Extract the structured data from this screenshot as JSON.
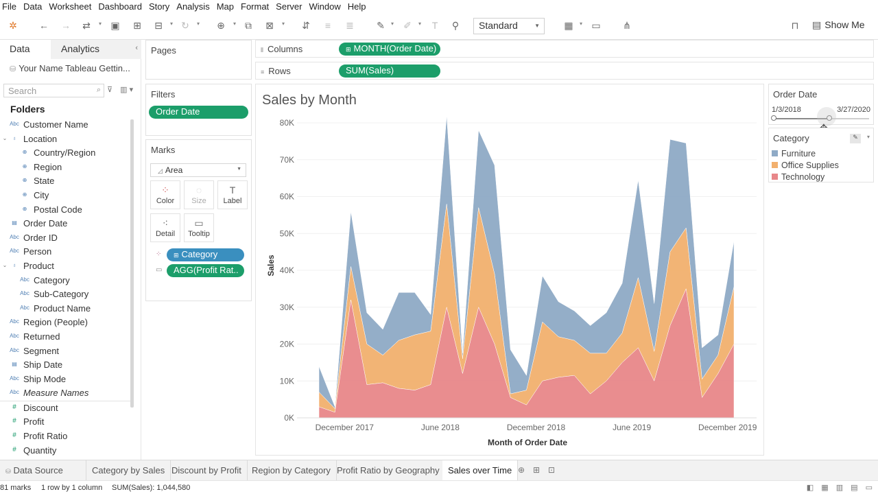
{
  "menu": [
    "File",
    "Data",
    "Worksheet",
    "Dashboard",
    "Story",
    "Analysis",
    "Map",
    "Format",
    "Server",
    "Window",
    "Help"
  ],
  "toolbar": {
    "fit_select": "Standard",
    "show_me": "Show Me"
  },
  "data_pane": {
    "tab_data": "Data",
    "tab_analytics": "Analytics",
    "datasource": "Your Name Tableau Gettin...",
    "search_placeholder": "Search",
    "folders_label": "Folders",
    "fields": [
      {
        "label": "Customer Name",
        "type": "Abc",
        "indent": 0
      },
      {
        "label": "Location",
        "type": "hier",
        "indent": 0
      },
      {
        "label": "Country/Region",
        "type": "geo",
        "indent": 1
      },
      {
        "label": "Region",
        "type": "geo",
        "indent": 1
      },
      {
        "label": "State",
        "type": "geo",
        "indent": 1
      },
      {
        "label": "City",
        "type": "geo",
        "indent": 1
      },
      {
        "label": "Postal Code",
        "type": "geo",
        "indent": 1
      },
      {
        "label": "Order Date",
        "type": "date",
        "indent": 0
      },
      {
        "label": "Order ID",
        "type": "Abc",
        "indent": 0
      },
      {
        "label": "Person",
        "type": "Abc",
        "indent": 0
      },
      {
        "label": "Product",
        "type": "hier",
        "indent": 0
      },
      {
        "label": "Category",
        "type": "Abc",
        "indent": 1
      },
      {
        "label": "Sub-Category",
        "type": "Abc",
        "indent": 1
      },
      {
        "label": "Product Name",
        "type": "Abc",
        "indent": 1
      },
      {
        "label": "Region (People)",
        "type": "Abc",
        "indent": 0
      },
      {
        "label": "Returned",
        "type": "Abc",
        "indent": 0
      },
      {
        "label": "Segment",
        "type": "Abc",
        "indent": 0
      },
      {
        "label": "Ship Date",
        "type": "date",
        "indent": 0
      },
      {
        "label": "Ship Mode",
        "type": "Abc",
        "indent": 0
      },
      {
        "label": "Measure Names",
        "type": "Abc",
        "indent": 0,
        "italic": true
      }
    ],
    "measures": [
      {
        "label": "Discount"
      },
      {
        "label": "Profit"
      },
      {
        "label": "Profit Ratio"
      },
      {
        "label": "Quantity"
      }
    ]
  },
  "pages": {
    "title": "Pages"
  },
  "filters": {
    "title": "Filters",
    "pill": "Order Date"
  },
  "marks": {
    "title": "Marks",
    "type": "Area",
    "buttons": {
      "color": "Color",
      "size": "Size",
      "label": "Label",
      "detail": "Detail",
      "tooltip": "Tooltip"
    },
    "pill_category": "Category",
    "pill_tooltip": "AGG(Profit Rat.."
  },
  "shelves": {
    "columns_label": "Columns",
    "columns_pill": "MONTH(Order Date)",
    "rows_label": "Rows",
    "rows_pill": "SUM(Sales)"
  },
  "chart_title": "Sales by Month",
  "chart_data": {
    "type": "area",
    "stacked": true,
    "title": "Sales by Month",
    "xlabel": "Month of Order Date",
    "ylabel": "Sales",
    "ylim": [
      0,
      80000
    ],
    "y_ticks": [
      "0K",
      "10K",
      "20K",
      "30K",
      "40K",
      "50K",
      "60K",
      "70K",
      "80K"
    ],
    "x_ticks": [
      {
        "label": "December 2017",
        "x": "2017-12"
      },
      {
        "label": "June 2018",
        "x": "2018-06"
      },
      {
        "label": "December 2018",
        "x": "2018-12"
      },
      {
        "label": "June 2019",
        "x": "2019-06"
      },
      {
        "label": "December 2019",
        "x": "2019-12"
      }
    ],
    "x": [
      "2017-11",
      "2017-12",
      "2018-01",
      "2018-02",
      "2018-03",
      "2018-04",
      "2018-05",
      "2018-06",
      "2018-07",
      "2018-08",
      "2018-09",
      "2018-10",
      "2018-11",
      "2018-12",
      "2019-01",
      "2019-02",
      "2019-03",
      "2019-04",
      "2019-05",
      "2019-06",
      "2019-07",
      "2019-08",
      "2019-09",
      "2019-10",
      "2019-11",
      "2019-12",
      "2020-01",
      "2020-02",
      "2020-03"
    ],
    "series": [
      {
        "name": "Technology",
        "color": "#e8878a",
        "values": [
          3000,
          1500,
          32000,
          9000,
          9500,
          8000,
          7500,
          9000,
          30000,
          12000,
          30000,
          20000,
          5500,
          3500,
          10000,
          11000,
          11500,
          6500,
          10000,
          15000,
          19000,
          10000,
          25000,
          35000,
          5500,
          12000,
          20000,
          0,
          0
        ]
      },
      {
        "name": "Office Supplies",
        "color": "#f2b06e",
        "values": [
          4000,
          1000,
          9000,
          11000,
          7500,
          13000,
          15000,
          14500,
          28000,
          4000,
          27000,
          19000,
          1000,
          4000,
          16000,
          11000,
          9500,
          11000,
          7500,
          8000,
          19000,
          8000,
          20000,
          16500,
          5000,
          5000,
          15500,
          0,
          0
        ]
      },
      {
        "name": "Furniture",
        "color": "#8faac6",
        "values": [
          7000,
          500,
          15000,
          8500,
          7000,
          13000,
          11500,
          4500,
          24000,
          1500,
          21000,
          29500,
          12000,
          4000,
          12500,
          9500,
          8000,
          7500,
          11000,
          13500,
          26500,
          13000,
          30500,
          23000,
          8500,
          5500,
          12500,
          0,
          0
        ]
      }
    ]
  },
  "right": {
    "order_date_title": "Order Date",
    "range_start": "1/3/2018",
    "range_end": "3/27/2020",
    "category_title": "Category",
    "legend": [
      {
        "label": "Furniture",
        "color": "#8faac6"
      },
      {
        "label": "Office Supplies",
        "color": "#f2b06e"
      },
      {
        "label": "Technology",
        "color": "#e8878a"
      }
    ]
  },
  "sheet_tabs": {
    "data_source": "Data Source",
    "tabs": [
      "Category by Sales",
      "Discount by Profit",
      "Region by Category",
      "Profit Ratio by Geography",
      "Sales over Time"
    ],
    "active": "Sales over Time"
  },
  "status": {
    "marks": "81 marks",
    "rows_cols": "1 row by 1 column",
    "sum": "SUM(Sales): 1,044,580"
  }
}
